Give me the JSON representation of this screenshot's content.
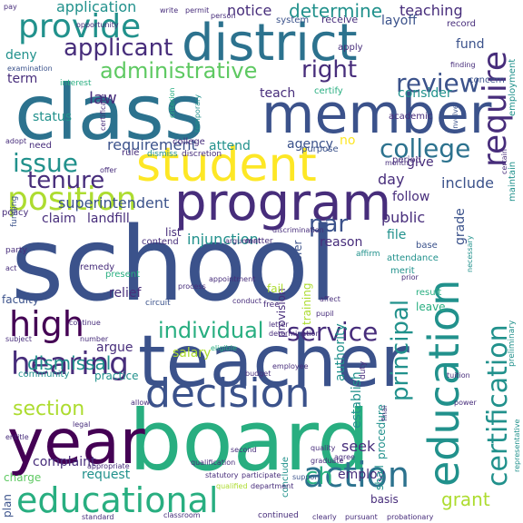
{
  "colors": {
    "dark_purple": "#440154",
    "indigo": "#472d7b",
    "slate_blue": "#3b528b",
    "steel_blue": "#2c728e",
    "teal": "#21918c",
    "sea_green": "#28ae80",
    "green": "#5ec962",
    "lime": "#addc30",
    "yellow": "#fde725",
    "background": "#ffffff"
  },
  "words": [
    {
      "text": "school",
      "color": "slate_blue"
    },
    {
      "text": "class",
      "color": "steel_blue"
    },
    {
      "text": "board",
      "color": "sea_green"
    },
    {
      "text": "teacher",
      "color": "slate_blue"
    },
    {
      "text": "member",
      "color": "slate_blue"
    },
    {
      "text": "year",
      "color": "dark_purple"
    },
    {
      "text": "district",
      "color": "steel_blue"
    },
    {
      "text": "program",
      "color": "indigo"
    },
    {
      "text": "student",
      "color": "yellow"
    },
    {
      "text": "decision",
      "color": "slate_blue"
    },
    {
      "text": "education",
      "color": "teal"
    },
    {
      "text": "educational",
      "color": "sea_green"
    },
    {
      "text": "provide",
      "color": "teal"
    },
    {
      "text": "position",
      "color": "lime"
    },
    {
      "text": "require",
      "color": "indigo"
    },
    {
      "text": "certification",
      "color": "teal"
    },
    {
      "text": "high",
      "color": "dark_purple"
    },
    {
      "text": "hearing",
      "color": "indigo"
    },
    {
      "text": "action",
      "color": "steel_blue"
    },
    {
      "text": "tenure",
      "color": "indigo"
    },
    {
      "text": "issue",
      "color": "teal"
    },
    {
      "text": "college",
      "color": "steel_blue"
    },
    {
      "text": "service",
      "color": "indigo"
    },
    {
      "text": "applicant",
      "color": "indigo"
    },
    {
      "text": "administrative",
      "color": "green"
    },
    {
      "text": "review",
      "color": "slate_blue"
    },
    {
      "text": "individual",
      "color": "sea_green"
    },
    {
      "text": "right",
      "color": "indigo"
    },
    {
      "text": "principal",
      "color": "teal"
    },
    {
      "text": "section",
      "color": "lime"
    },
    {
      "text": "dismissal",
      "color": "teal"
    },
    {
      "text": "par",
      "color": "slate_blue"
    },
    {
      "text": "ch",
      "color": "sea_green"
    },
    {
      "text": "grant",
      "color": "lime"
    },
    {
      "text": "determine",
      "color": "teal"
    },
    {
      "text": "application",
      "color": "teal"
    },
    {
      "text": "notice",
      "color": "indigo"
    },
    {
      "text": "teaching",
      "color": "indigo"
    },
    {
      "text": "layoff",
      "color": "slate_blue"
    },
    {
      "text": "law",
      "color": "indigo"
    },
    {
      "text": "requirement",
      "color": "slate_blue"
    },
    {
      "text": "status",
      "color": "teal"
    },
    {
      "text": "term",
      "color": "indigo"
    },
    {
      "text": "deny",
      "color": "teal"
    },
    {
      "text": "fund",
      "color": "slate_blue"
    },
    {
      "text": "consider",
      "color": "teal"
    },
    {
      "text": "teach",
      "color": "indigo"
    },
    {
      "text": "give",
      "color": "indigo"
    },
    {
      "text": "day",
      "color": "indigo"
    },
    {
      "text": "include",
      "color": "slate_blue"
    },
    {
      "text": "follow",
      "color": "indigo"
    },
    {
      "text": "public",
      "color": "indigo"
    },
    {
      "text": "superintendent",
      "color": "slate_blue"
    },
    {
      "text": "attend",
      "color": "teal"
    },
    {
      "text": "agency",
      "color": "slate_blue"
    },
    {
      "text": "no",
      "color": "yellow"
    },
    {
      "text": "claim",
      "color": "indigo"
    },
    {
      "text": "landfill",
      "color": "indigo"
    },
    {
      "text": "injunction",
      "color": "teal"
    },
    {
      "text": "reason",
      "color": "indigo"
    },
    {
      "text": "file",
      "color": "teal"
    },
    {
      "text": "relief",
      "color": "indigo"
    },
    {
      "text": "salary",
      "color": "lime"
    },
    {
      "text": "argue",
      "color": "indigo"
    },
    {
      "text": "authority",
      "color": "teal"
    },
    {
      "text": "seek",
      "color": "indigo"
    },
    {
      "text": "complaint",
      "color": "indigo"
    },
    {
      "text": "request",
      "color": "teal"
    },
    {
      "text": "employ",
      "color": "indigo"
    },
    {
      "text": "establish",
      "color": "teal"
    },
    {
      "text": "grade",
      "color": "slate_blue"
    },
    {
      "text": "list",
      "color": "indigo"
    },
    {
      "text": "policy",
      "color": "indigo"
    },
    {
      "text": "faculty",
      "color": "slate_blue"
    },
    {
      "text": "charge",
      "color": "green"
    },
    {
      "text": "community",
      "color": "teal"
    },
    {
      "text": "practice",
      "color": "teal"
    },
    {
      "text": "leave",
      "color": "sea_green"
    },
    {
      "text": "result",
      "color": "sea_green"
    },
    {
      "text": "base",
      "color": "slate_blue"
    },
    {
      "text": "attendance",
      "color": "teal"
    },
    {
      "text": "merit",
      "color": "teal"
    },
    {
      "text": "employment",
      "color": "teal"
    },
    {
      "text": "maintain",
      "color": "teal"
    },
    {
      "text": "shall",
      "color": "teal"
    },
    {
      "text": "procedure",
      "color": "teal"
    },
    {
      "text": "conclude",
      "color": "teal"
    },
    {
      "text": "basis",
      "color": "indigo"
    },
    {
      "text": "plan",
      "color": "slate_blue"
    },
    {
      "text": "continued",
      "color": "indigo"
    },
    {
      "text": "training",
      "color": "lime"
    },
    {
      "text": "transfer",
      "color": "slate_blue"
    },
    {
      "text": "provision",
      "color": "indigo"
    },
    {
      "text": "remedy",
      "color": "indigo"
    },
    {
      "text": "present",
      "color": "sea_green"
    },
    {
      "text": "need",
      "color": "indigo"
    },
    {
      "text": "rule",
      "color": "indigo"
    },
    {
      "text": "dismiss",
      "color": "teal"
    },
    {
      "text": "discretion",
      "color": "indigo"
    },
    {
      "text": "receive",
      "color": "indigo"
    },
    {
      "text": "system",
      "color": "slate_blue"
    },
    {
      "text": "academic",
      "color": "indigo"
    },
    {
      "text": "apply",
      "color": "indigo"
    },
    {
      "text": "certify",
      "color": "sea_green"
    },
    {
      "text": "college",
      "color": "indigo"
    },
    {
      "text": "period",
      "color": "indigo"
    },
    {
      "text": "purpose",
      "color": "slate_blue"
    },
    {
      "text": "matter",
      "color": "indigo"
    },
    {
      "text": "contend",
      "color": "indigo"
    },
    {
      "text": "affirm",
      "color": "teal"
    },
    {
      "text": "party",
      "color": "indigo"
    },
    {
      "text": "circuit",
      "color": "slate_blue"
    },
    {
      "text": "fail",
      "color": "lime"
    },
    {
      "text": "free",
      "color": "indigo"
    },
    {
      "text": "record",
      "color": "indigo"
    },
    {
      "text": "concern",
      "color": "slate_blue"
    },
    {
      "text": "write",
      "color": "indigo"
    },
    {
      "text": "permit",
      "color": "indigo"
    },
    {
      "text": "examination",
      "color": "slate_blue"
    },
    {
      "text": "interest",
      "color": "sea_green"
    },
    {
      "text": "funding",
      "color": "slate_blue"
    },
    {
      "text": "criterion",
      "color": "sea_green"
    },
    {
      "text": "temporary",
      "color": "teal"
    },
    {
      "text": "preliminary",
      "color": "teal"
    },
    {
      "text": "duty",
      "color": "indigo"
    },
    {
      "text": "employee",
      "color": "indigo"
    },
    {
      "text": "letter",
      "color": "indigo"
    },
    {
      "text": "determination",
      "color": "indigo"
    },
    {
      "text": "support",
      "color": "slate_blue"
    },
    {
      "text": "department",
      "color": "indigo"
    },
    {
      "text": "qualified",
      "color": "lime"
    },
    {
      "text": "quality",
      "color": "indigo"
    },
    {
      "text": "graduate",
      "color": "indigo"
    },
    {
      "text": "probationary",
      "color": "indigo"
    },
    {
      "text": "pursuant",
      "color": "indigo"
    },
    {
      "text": "clearly",
      "color": "indigo"
    },
    {
      "text": "classroom",
      "color": "indigo"
    },
    {
      "text": "eligible",
      "color": "sea_green"
    },
    {
      "text": "number",
      "color": "indigo"
    },
    {
      "text": "subject",
      "color": "indigo"
    },
    {
      "text": "entitle",
      "color": "indigo"
    },
    {
      "text": "legal",
      "color": "indigo"
    },
    {
      "text": "allow",
      "color": "indigo"
    },
    {
      "text": "second",
      "color": "indigo"
    },
    {
      "text": "appropriate",
      "color": "indigo"
    },
    {
      "text": "representative",
      "color": "teal"
    },
    {
      "text": "budget",
      "color": "indigo"
    },
    {
      "text": "continue",
      "color": "indigo"
    },
    {
      "text": "pay",
      "color": "indigo"
    },
    {
      "text": "opportunity",
      "color": "indigo"
    },
    {
      "text": "person",
      "color": "indigo"
    },
    {
      "text": "finding",
      "color": "indigo"
    },
    {
      "text": "involve",
      "color": "slate_blue"
    },
    {
      "text": "offer",
      "color": "indigo"
    },
    {
      "text": "adopt",
      "color": "indigo"
    },
    {
      "text": "act",
      "color": "indigo"
    },
    {
      "text": "argument",
      "color": "indigo"
    },
    {
      "text": "appointment",
      "color": "indigo"
    },
    {
      "text": "necessary",
      "color": "teal"
    },
    {
      "text": "affect",
      "color": "indigo"
    },
    {
      "text": "pupil",
      "color": "indigo"
    },
    {
      "text": "conduct",
      "color": "indigo"
    },
    {
      "text": "process",
      "color": "indigo"
    },
    {
      "text": "power",
      "color": "indigo"
    },
    {
      "text": "tuition",
      "color": "indigo"
    },
    {
      "text": "agree",
      "color": "indigo"
    },
    {
      "text": "certain",
      "color": "indigo"
    },
    {
      "text": "month",
      "color": "indigo"
    },
    {
      "text": "statutory",
      "color": "indigo"
    },
    {
      "text": "participate",
      "color": "indigo"
    },
    {
      "text": "discrimination",
      "color": "indigo"
    },
    {
      "text": "qualification",
      "color": "indigo"
    },
    {
      "text": "standard",
      "color": "indigo"
    },
    {
      "text": "final",
      "color": "indigo"
    },
    {
      "text": "certificate",
      "color": "indigo"
    },
    {
      "text": "prior",
      "color": "indigo"
    }
  ]
}
